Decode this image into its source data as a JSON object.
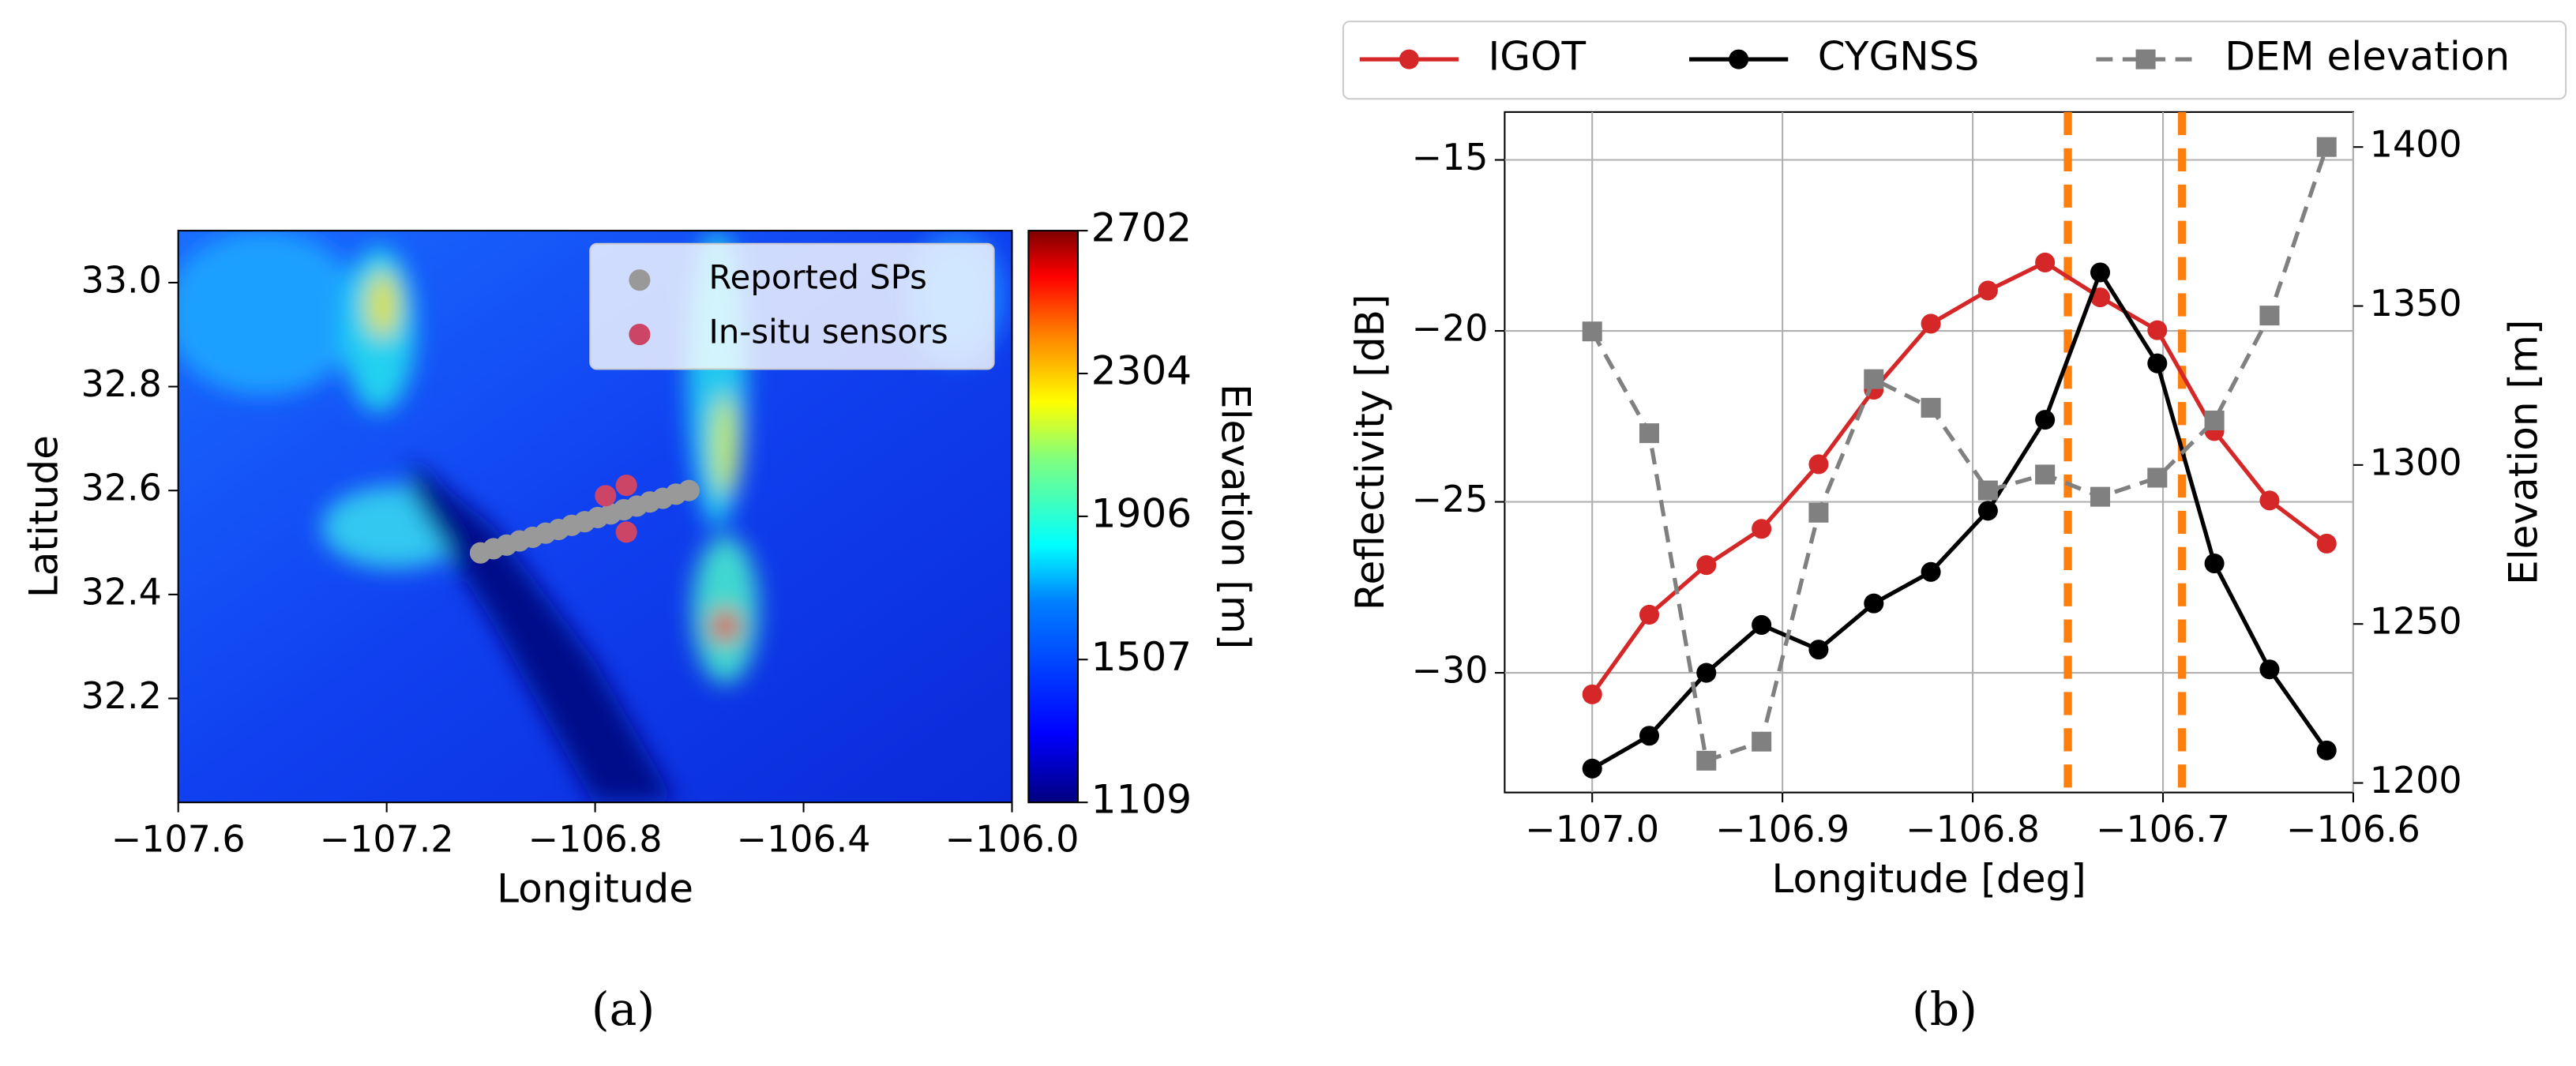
{
  "chart_data": [
    {
      "type": "scatter",
      "label": "(a)",
      "xlabel": "Longitude",
      "ylabel": "Latitude",
      "xlim": [
        -107.6,
        -106.0
      ],
      "ylim": [
        32.0,
        33.1
      ],
      "xticks": [
        {
          "value": -107.6,
          "label": "−107.6"
        },
        {
          "value": -107.2,
          "label": "−107.2"
        },
        {
          "value": -106.8,
          "label": "−106.8"
        },
        {
          "value": -106.4,
          "label": "−106.4"
        },
        {
          "value": -106.0,
          "label": "−106.0"
        }
      ],
      "yticks": [
        32.2,
        32.4,
        32.6,
        32.8,
        {
          "value": 33.0,
          "label": "33.0"
        }
      ],
      "legend": "upper right",
      "series": [
        {
          "name": "Reported SPs",
          "color": "#999999",
          "x": [
            -107.02,
            -106.995,
            -106.97,
            -106.945,
            -106.92,
            -106.895,
            -106.87,
            -106.845,
            -106.82,
            -106.795,
            -106.77,
            -106.745,
            -106.72,
            -106.695,
            -106.67,
            -106.645,
            -106.62
          ],
          "values": [
            32.48,
            32.488,
            32.495,
            32.503,
            32.51,
            32.518,
            32.525,
            32.533,
            32.54,
            32.548,
            32.555,
            32.563,
            32.57,
            32.578,
            32.585,
            32.593,
            32.6
          ]
        },
        {
          "name": "In-situ sensors",
          "color": "#cc4466",
          "x": [
            -106.78,
            -106.74,
            -106.74
          ],
          "values": [
            32.59,
            32.61,
            32.52
          ]
        }
      ],
      "colorbar": {
        "label": "Elevation [m]",
        "lim": [
          1109,
          2702
        ],
        "ticks": [
          1109,
          1507,
          1906,
          2304,
          2702
        ]
      }
    },
    {
      "type": "line",
      "label": "(b)",
      "xlabel": "Longitude [deg]",
      "ylabel": "Reflectivity [dB]",
      "y2label": "Elevation [m]",
      "x": [
        -107.0,
        -106.97,
        -106.94,
        -106.911,
        -106.881,
        -106.852,
        -106.822,
        -106.792,
        -106.762,
        -106.733,
        -106.703,
        -106.673,
        -106.644,
        -106.614
      ],
      "xlim": [
        -107.046,
        -106.6
      ],
      "ylim": [
        -33.5,
        -13.6
      ],
      "y2lim": [
        1197,
        1411
      ],
      "xticks": [
        {
          "value": -107.0,
          "label": "−107.0"
        },
        {
          "value": -106.9,
          "label": "−106.9"
        },
        {
          "value": -106.8,
          "label": "−106.8"
        },
        {
          "value": -106.7,
          "label": "−106.7"
        },
        {
          "value": -106.6,
          "label": "−106.6"
        }
      ],
      "yticks": [
        {
          "value": -30,
          "label": "−30"
        },
        {
          "value": -25,
          "label": "−25"
        },
        {
          "value": -20,
          "label": "−20"
        },
        {
          "value": -15,
          "label": "−15"
        }
      ],
      "y2ticks": [
        1200,
        1250,
        1300,
        1350,
        1400
      ],
      "grid": true,
      "legend": "top outside",
      "vlines": {
        "values": [
          -106.75,
          -106.69
        ],
        "color": "#ff7f0e"
      },
      "series": [
        {
          "name": "IGOT",
          "color": "#d62728",
          "marker": "circle",
          "linestyle": "solid",
          "values": [
            -30.63,
            -28.3,
            -26.85,
            -25.79,
            -23.9,
            -21.72,
            -19.79,
            -18.82,
            -18.0,
            -19.02,
            -19.98,
            -22.93,
            -24.96,
            -26.22
          ]
        },
        {
          "name": "CYGNSS",
          "color": "#000000",
          "marker": "circle",
          "linestyle": "solid",
          "values": [
            -32.8,
            -31.84,
            -30.0,
            -28.6,
            -29.32,
            -27.97,
            -27.05,
            -25.26,
            -22.6,
            -18.29,
            -20.95,
            -26.8,
            -29.9,
            -32.27
          ]
        },
        {
          "name": "DEM elevation",
          "color": "#808080",
          "marker": "square",
          "linestyle": "dashed",
          "axis": "y2",
          "values": [
            1342,
            1310,
            1207,
            1213,
            1285,
            1327,
            1318,
            1292,
            1297,
            1290,
            1296,
            1314,
            1347,
            1400
          ]
        }
      ]
    }
  ]
}
